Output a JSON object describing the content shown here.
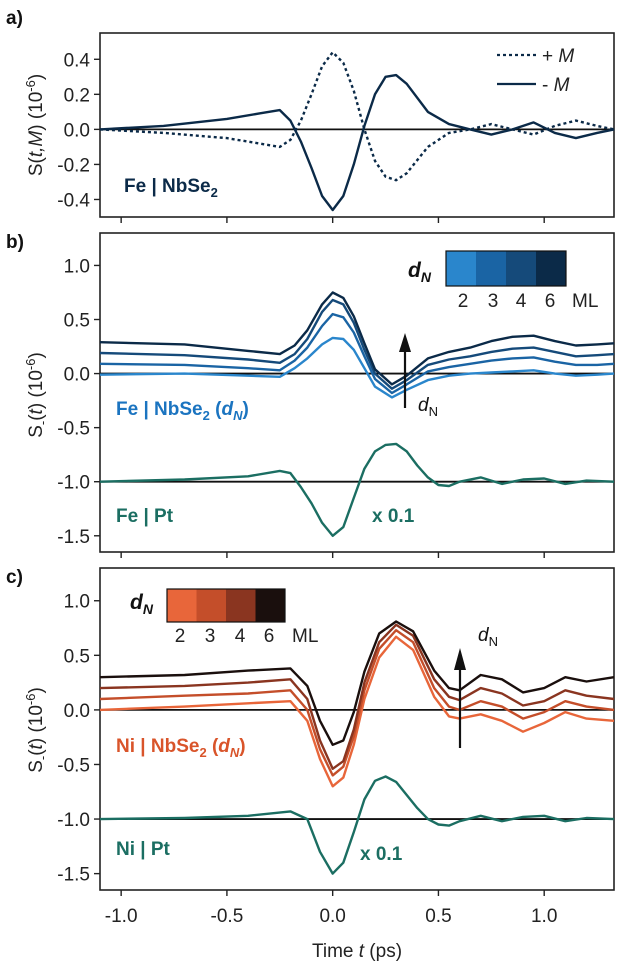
{
  "x_axis": {
    "label": "Time t (ps)",
    "label_pre": "Time ",
    "label_var": "t",
    "label_post": " (ps)",
    "ticks": [
      -1.0,
      -0.5,
      0.0,
      0.5,
      1.0
    ],
    "tick_labels": [
      "-1.0",
      "-0.5",
      "0.0",
      "0.5",
      "1.0"
    ],
    "range": [
      -1.1,
      1.33
    ]
  },
  "panel_a": {
    "label": "a)",
    "ylabel_pre": "S(",
    "ylabel_var": "t,M",
    "ylabel_post": ") (10",
    "ylabel_exp": "-6",
    "ylabel_close": ")",
    "sample_pre": "Fe | NbSe",
    "sample_sub": "2",
    "legend": [
      {
        "label_pre": "+ ",
        "label_var": "M",
        "style": "dotted"
      },
      {
        "label_pre": "- ",
        "label_var": "M",
        "style": "solid"
      }
    ]
  },
  "panel_b": {
    "label": "b)",
    "ylabel_pre": "S",
    "ylabel_sub": "-",
    "ylabel_mid": "(",
    "ylabel_var": "t",
    "ylabel_post": ") (10",
    "ylabel_exp": "-6",
    "ylabel_close": ")",
    "sample_pre": "Fe | NbSe",
    "sample_sub": "2",
    "sample_mid": " (",
    "sample_var": "d",
    "sample_varsub": "N",
    "sample_close": ")",
    "ref_label": "Fe | Pt",
    "scale_label": "x 0.1",
    "arrow_label_var": "d",
    "arrow_label_sub": "N",
    "colorbar_title_var": "d",
    "colorbar_title_sub": "N",
    "colorbar_ticks": [
      "2",
      "3",
      "4",
      "6"
    ],
    "colorbar_unit": "ML"
  },
  "panel_c": {
    "label": "c)",
    "ylabel_pre": "S",
    "ylabel_sub": "-",
    "ylabel_mid": "(",
    "ylabel_var": "t",
    "ylabel_post": ") (10",
    "ylabel_exp": "-6",
    "ylabel_close": ")",
    "sample_pre": "Ni | NbSe",
    "sample_sub": "2",
    "sample_mid": " (",
    "sample_var": "d",
    "sample_varsub": "N",
    "sample_close": ")",
    "ref_label": "Ni | Pt",
    "scale_label": "x 0.1",
    "arrow_label_var": "d",
    "arrow_label_sub": "N",
    "colorbar_title_var": "d",
    "colorbar_title_sub": "N",
    "colorbar_ticks": [
      "2",
      "3",
      "4",
      "6"
    ],
    "colorbar_unit": "ML"
  },
  "colors": {
    "axis": "#222222",
    "navy": "#0b2a48",
    "blue_text": "#1b74c0",
    "orange_text": "#d9542a",
    "teal": "#1b6e62",
    "blues": [
      "#2a86cc",
      "#1a64a4",
      "#154a7a",
      "#0b2a48"
    ],
    "oranges": [
      "#e8663a",
      "#c44e2a",
      "#8a3520",
      "#1a0f0d"
    ]
  },
  "chart_data": [
    {
      "type": "line",
      "panel": "a",
      "ylim": [
        -0.5,
        0.55
      ],
      "yticks": [
        -0.4,
        -0.2,
        0.0,
        0.2,
        0.4
      ],
      "ytick_labels": [
        "-0.4",
        "-0.2",
        "0.0",
        "0.2",
        "0.4"
      ],
      "series": [
        {
          "name": "+ M",
          "style": "dotted",
          "x": [
            -1.1,
            -0.8,
            -0.5,
            -0.35,
            -0.25,
            -0.2,
            -0.15,
            -0.1,
            -0.05,
            0.0,
            0.05,
            0.1,
            0.15,
            0.2,
            0.25,
            0.3,
            0.35,
            0.45,
            0.55,
            0.65,
            0.75,
            0.85,
            0.95,
            1.05,
            1.15,
            1.25,
            1.33
          ],
          "y": [
            0.0,
            -0.02,
            -0.05,
            -0.08,
            -0.1,
            -0.06,
            0.05,
            0.2,
            0.36,
            0.44,
            0.38,
            0.22,
            0.0,
            -0.18,
            -0.27,
            -0.29,
            -0.25,
            -0.1,
            -0.02,
            0.0,
            0.03,
            0.0,
            -0.03,
            0.02,
            0.05,
            0.02,
            0.0
          ]
        },
        {
          "name": "- M",
          "style": "solid",
          "x": [
            -1.1,
            -0.8,
            -0.5,
            -0.35,
            -0.25,
            -0.2,
            -0.15,
            -0.1,
            -0.05,
            0.0,
            0.05,
            0.1,
            0.15,
            0.2,
            0.25,
            0.3,
            0.35,
            0.45,
            0.55,
            0.65,
            0.75,
            0.85,
            0.95,
            1.05,
            1.15,
            1.25,
            1.33
          ],
          "y": [
            0.0,
            0.02,
            0.06,
            0.09,
            0.11,
            0.05,
            -0.07,
            -0.22,
            -0.38,
            -0.46,
            -0.38,
            -0.2,
            0.02,
            0.2,
            0.3,
            0.31,
            0.26,
            0.1,
            0.03,
            0.0,
            -0.03,
            0.0,
            0.04,
            -0.02,
            -0.05,
            -0.02,
            0.0
          ]
        }
      ]
    },
    {
      "type": "line",
      "panel": "b",
      "ylim": [
        -1.65,
        1.3
      ],
      "yticks": [
        -1.5,
        -1.0,
        -0.5,
        0.0,
        0.5,
        1.0
      ],
      "ytick_labels": [
        "-1.5",
        "-1.0",
        "-0.5",
        "0.0",
        "0.5",
        "1.0"
      ],
      "series": [
        {
          "name": "2",
          "x": [
            -1.1,
            -0.7,
            -0.4,
            -0.25,
            -0.18,
            -0.12,
            -0.05,
            0.0,
            0.05,
            0.1,
            0.15,
            0.2,
            0.28,
            0.35,
            0.45,
            0.55,
            0.65,
            0.75,
            0.85,
            0.95,
            1.05,
            1.15,
            1.25,
            1.33
          ],
          "y": [
            -0.01,
            0.0,
            -0.02,
            -0.03,
            0.05,
            0.14,
            0.27,
            0.33,
            0.32,
            0.22,
            0.05,
            -0.12,
            -0.22,
            -0.15,
            -0.06,
            -0.02,
            0.0,
            0.01,
            0.02,
            0.03,
            0.0,
            -0.02,
            -0.01,
            0.0
          ]
        },
        {
          "name": "3",
          "x": [
            -1.1,
            -0.7,
            -0.4,
            -0.25,
            -0.18,
            -0.12,
            -0.05,
            0.0,
            0.05,
            0.1,
            0.15,
            0.2,
            0.28,
            0.35,
            0.45,
            0.55,
            0.65,
            0.75,
            0.85,
            0.95,
            1.05,
            1.15,
            1.25,
            1.33
          ],
          "y": [
            0.09,
            0.08,
            0.05,
            0.03,
            0.12,
            0.24,
            0.44,
            0.55,
            0.52,
            0.38,
            0.16,
            -0.05,
            -0.18,
            -0.1,
            0.02,
            0.06,
            0.09,
            0.12,
            0.14,
            0.15,
            0.11,
            0.08,
            0.08,
            0.09
          ]
        },
        {
          "name": "4",
          "x": [
            -1.1,
            -0.7,
            -0.4,
            -0.25,
            -0.18,
            -0.12,
            -0.05,
            0.0,
            0.05,
            0.1,
            0.15,
            0.2,
            0.28,
            0.35,
            0.45,
            0.55,
            0.65,
            0.75,
            0.85,
            0.95,
            1.05,
            1.15,
            1.25,
            1.33
          ],
          "y": [
            0.19,
            0.17,
            0.13,
            0.1,
            0.18,
            0.32,
            0.57,
            0.68,
            0.64,
            0.47,
            0.22,
            0.0,
            -0.14,
            -0.06,
            0.08,
            0.13,
            0.16,
            0.2,
            0.23,
            0.24,
            0.2,
            0.16,
            0.17,
            0.18
          ]
        },
        {
          "name": "6",
          "x": [
            -1.1,
            -0.7,
            -0.4,
            -0.25,
            -0.18,
            -0.12,
            -0.05,
            0.0,
            0.05,
            0.1,
            0.15,
            0.2,
            0.28,
            0.35,
            0.45,
            0.55,
            0.65,
            0.75,
            0.85,
            0.95,
            1.05,
            1.15,
            1.25,
            1.33
          ],
          "y": [
            0.29,
            0.27,
            0.21,
            0.18,
            0.26,
            0.4,
            0.64,
            0.75,
            0.7,
            0.53,
            0.28,
            0.04,
            -0.1,
            -0.02,
            0.14,
            0.2,
            0.24,
            0.3,
            0.34,
            0.35,
            0.3,
            0.26,
            0.27,
            0.28
          ]
        },
        {
          "name": "Fe | Pt",
          "x": [
            -1.1,
            -0.7,
            -0.4,
            -0.25,
            -0.2,
            -0.15,
            -0.1,
            -0.05,
            0.0,
            0.05,
            0.1,
            0.15,
            0.2,
            0.25,
            0.3,
            0.35,
            0.4,
            0.45,
            0.5,
            0.55,
            0.6,
            0.7,
            0.8,
            0.9,
            1.0,
            1.1,
            1.2,
            1.33
          ],
          "y": [
            -1.0,
            -0.98,
            -0.95,
            -0.9,
            -0.92,
            -1.05,
            -1.2,
            -1.38,
            -1.5,
            -1.42,
            -1.15,
            -0.88,
            -0.72,
            -0.66,
            -0.65,
            -0.72,
            -0.85,
            -0.96,
            -1.03,
            -1.04,
            -1.0,
            -0.96,
            -1.02,
            -0.98,
            -0.97,
            -1.02,
            -0.99,
            -1.0
          ]
        }
      ]
    },
    {
      "type": "line",
      "panel": "c",
      "ylim": [
        -1.65,
        1.3
      ],
      "yticks": [
        -1.5,
        -1.0,
        -0.5,
        0.0,
        0.5,
        1.0
      ],
      "ytick_labels": [
        "-1.5",
        "-1.0",
        "-0.5",
        "0.0",
        "0.5",
        "1.0"
      ],
      "series": [
        {
          "name": "2",
          "x": [
            -1.1,
            -0.7,
            -0.4,
            -0.2,
            -0.12,
            -0.06,
            0.0,
            0.05,
            0.1,
            0.15,
            0.22,
            0.3,
            0.38,
            0.48,
            0.55,
            0.6,
            0.7,
            0.8,
            0.9,
            1.0,
            1.1,
            1.2,
            1.33
          ],
          "y": [
            0.0,
            0.03,
            0.06,
            0.08,
            -0.1,
            -0.45,
            -0.7,
            -0.62,
            -0.32,
            0.1,
            0.48,
            0.67,
            0.55,
            0.12,
            -0.06,
            -0.08,
            -0.04,
            -0.1,
            -0.2,
            -0.12,
            -0.02,
            -0.08,
            -0.1
          ]
        },
        {
          "name": "3",
          "x": [
            -1.1,
            -0.7,
            -0.4,
            -0.2,
            -0.12,
            -0.06,
            0.0,
            0.05,
            0.1,
            0.15,
            0.22,
            0.3,
            0.38,
            0.48,
            0.55,
            0.6,
            0.7,
            0.8,
            0.9,
            1.0,
            1.1,
            1.2,
            1.33
          ],
          "y": [
            0.1,
            0.13,
            0.15,
            0.18,
            0.0,
            -0.36,
            -0.6,
            -0.52,
            -0.24,
            0.18,
            0.56,
            0.73,
            0.62,
            0.2,
            0.03,
            0.0,
            0.08,
            0.03,
            -0.08,
            -0.02,
            0.08,
            0.03,
            0.0
          ]
        },
        {
          "name": "4",
          "x": [
            -1.1,
            -0.7,
            -0.4,
            -0.2,
            -0.12,
            -0.06,
            0.0,
            0.05,
            0.1,
            0.15,
            0.22,
            0.3,
            0.38,
            0.48,
            0.55,
            0.6,
            0.7,
            0.8,
            0.9,
            1.0,
            1.1,
            1.2,
            1.33
          ],
          "y": [
            0.2,
            0.22,
            0.25,
            0.28,
            0.1,
            -0.28,
            -0.54,
            -0.47,
            -0.18,
            0.25,
            0.62,
            0.78,
            0.68,
            0.28,
            0.12,
            0.09,
            0.2,
            0.15,
            0.04,
            0.08,
            0.18,
            0.13,
            0.1
          ]
        },
        {
          "name": "6",
          "x": [
            -1.1,
            -0.7,
            -0.4,
            -0.2,
            -0.12,
            -0.06,
            0.0,
            0.05,
            0.1,
            0.15,
            0.22,
            0.3,
            0.38,
            0.48,
            0.55,
            0.6,
            0.7,
            0.8,
            0.9,
            1.0,
            1.1,
            1.2,
            1.33
          ],
          "y": [
            0.3,
            0.32,
            0.36,
            0.38,
            0.22,
            -0.1,
            -0.32,
            -0.28,
            -0.02,
            0.35,
            0.7,
            0.81,
            0.72,
            0.36,
            0.2,
            0.18,
            0.32,
            0.28,
            0.16,
            0.2,
            0.3,
            0.26,
            0.3
          ]
        },
        {
          "name": "Ni | Pt",
          "x": [
            -1.1,
            -0.7,
            -0.4,
            -0.2,
            -0.12,
            -0.06,
            0.0,
            0.05,
            0.1,
            0.15,
            0.2,
            0.25,
            0.3,
            0.35,
            0.4,
            0.45,
            0.5,
            0.55,
            0.6,
            0.7,
            0.8,
            0.9,
            1.0,
            1.1,
            1.2,
            1.33
          ],
          "y": [
            -1.0,
            -0.99,
            -0.97,
            -0.93,
            -1.0,
            -1.3,
            -1.5,
            -1.4,
            -1.12,
            -0.82,
            -0.65,
            -0.61,
            -0.66,
            -0.78,
            -0.9,
            -1.0,
            -1.05,
            -1.06,
            -1.02,
            -0.97,
            -1.02,
            -0.98,
            -0.97,
            -1.02,
            -0.99,
            -1.0
          ]
        }
      ]
    }
  ]
}
